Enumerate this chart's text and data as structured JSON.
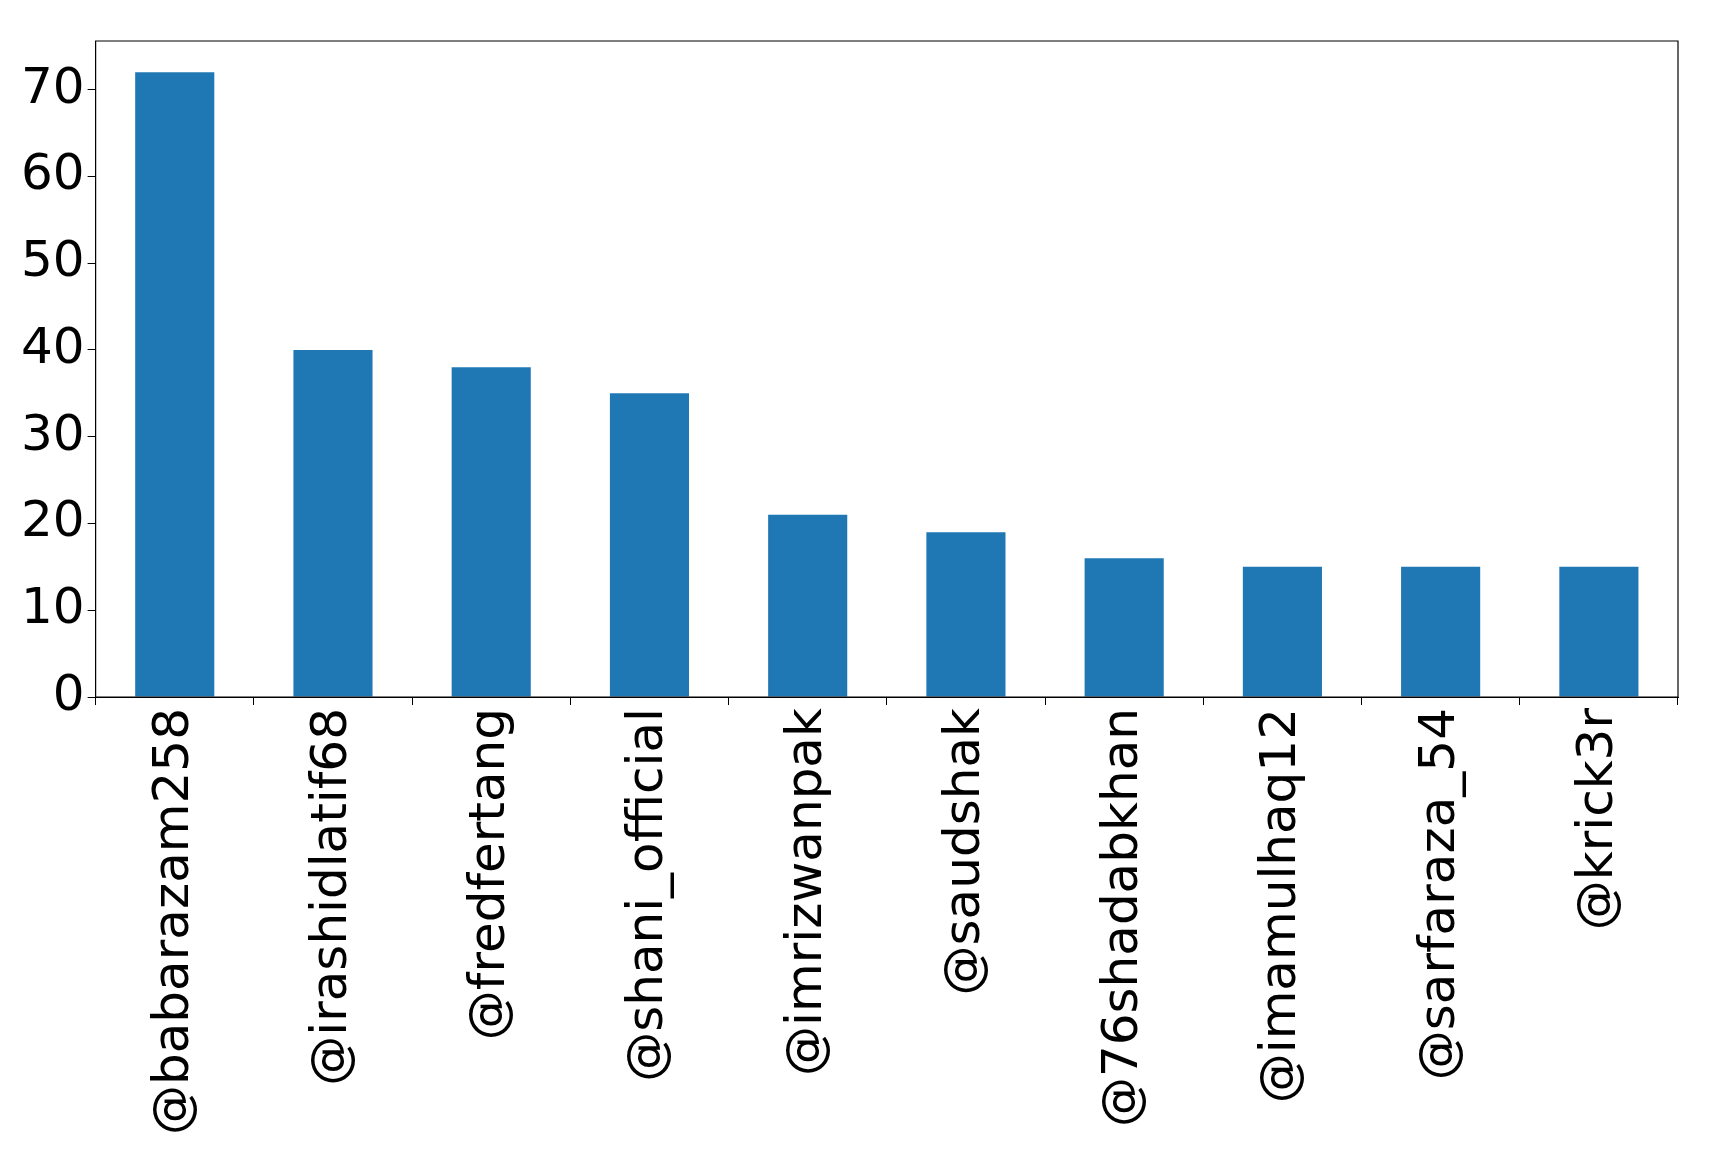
{
  "chart_data": {
    "type": "bar",
    "categories": [
      "@babarazam258",
      "@irashidlatif68",
      "@fredfertang",
      "@shani_official",
      "@imrizwanpak",
      "@saudshak",
      "@76shadabkhan",
      "@imamulhaq12",
      "@sarfaraza_54",
      "@krick3r"
    ],
    "values": [
      72,
      40,
      38,
      35,
      21,
      19,
      16,
      15,
      15,
      15
    ],
    "color": "#1f77b4",
    "ylim": [
      0,
      75.6
    ],
    "yticks": [
      0,
      10,
      20,
      30,
      40,
      50,
      60,
      70
    ]
  }
}
